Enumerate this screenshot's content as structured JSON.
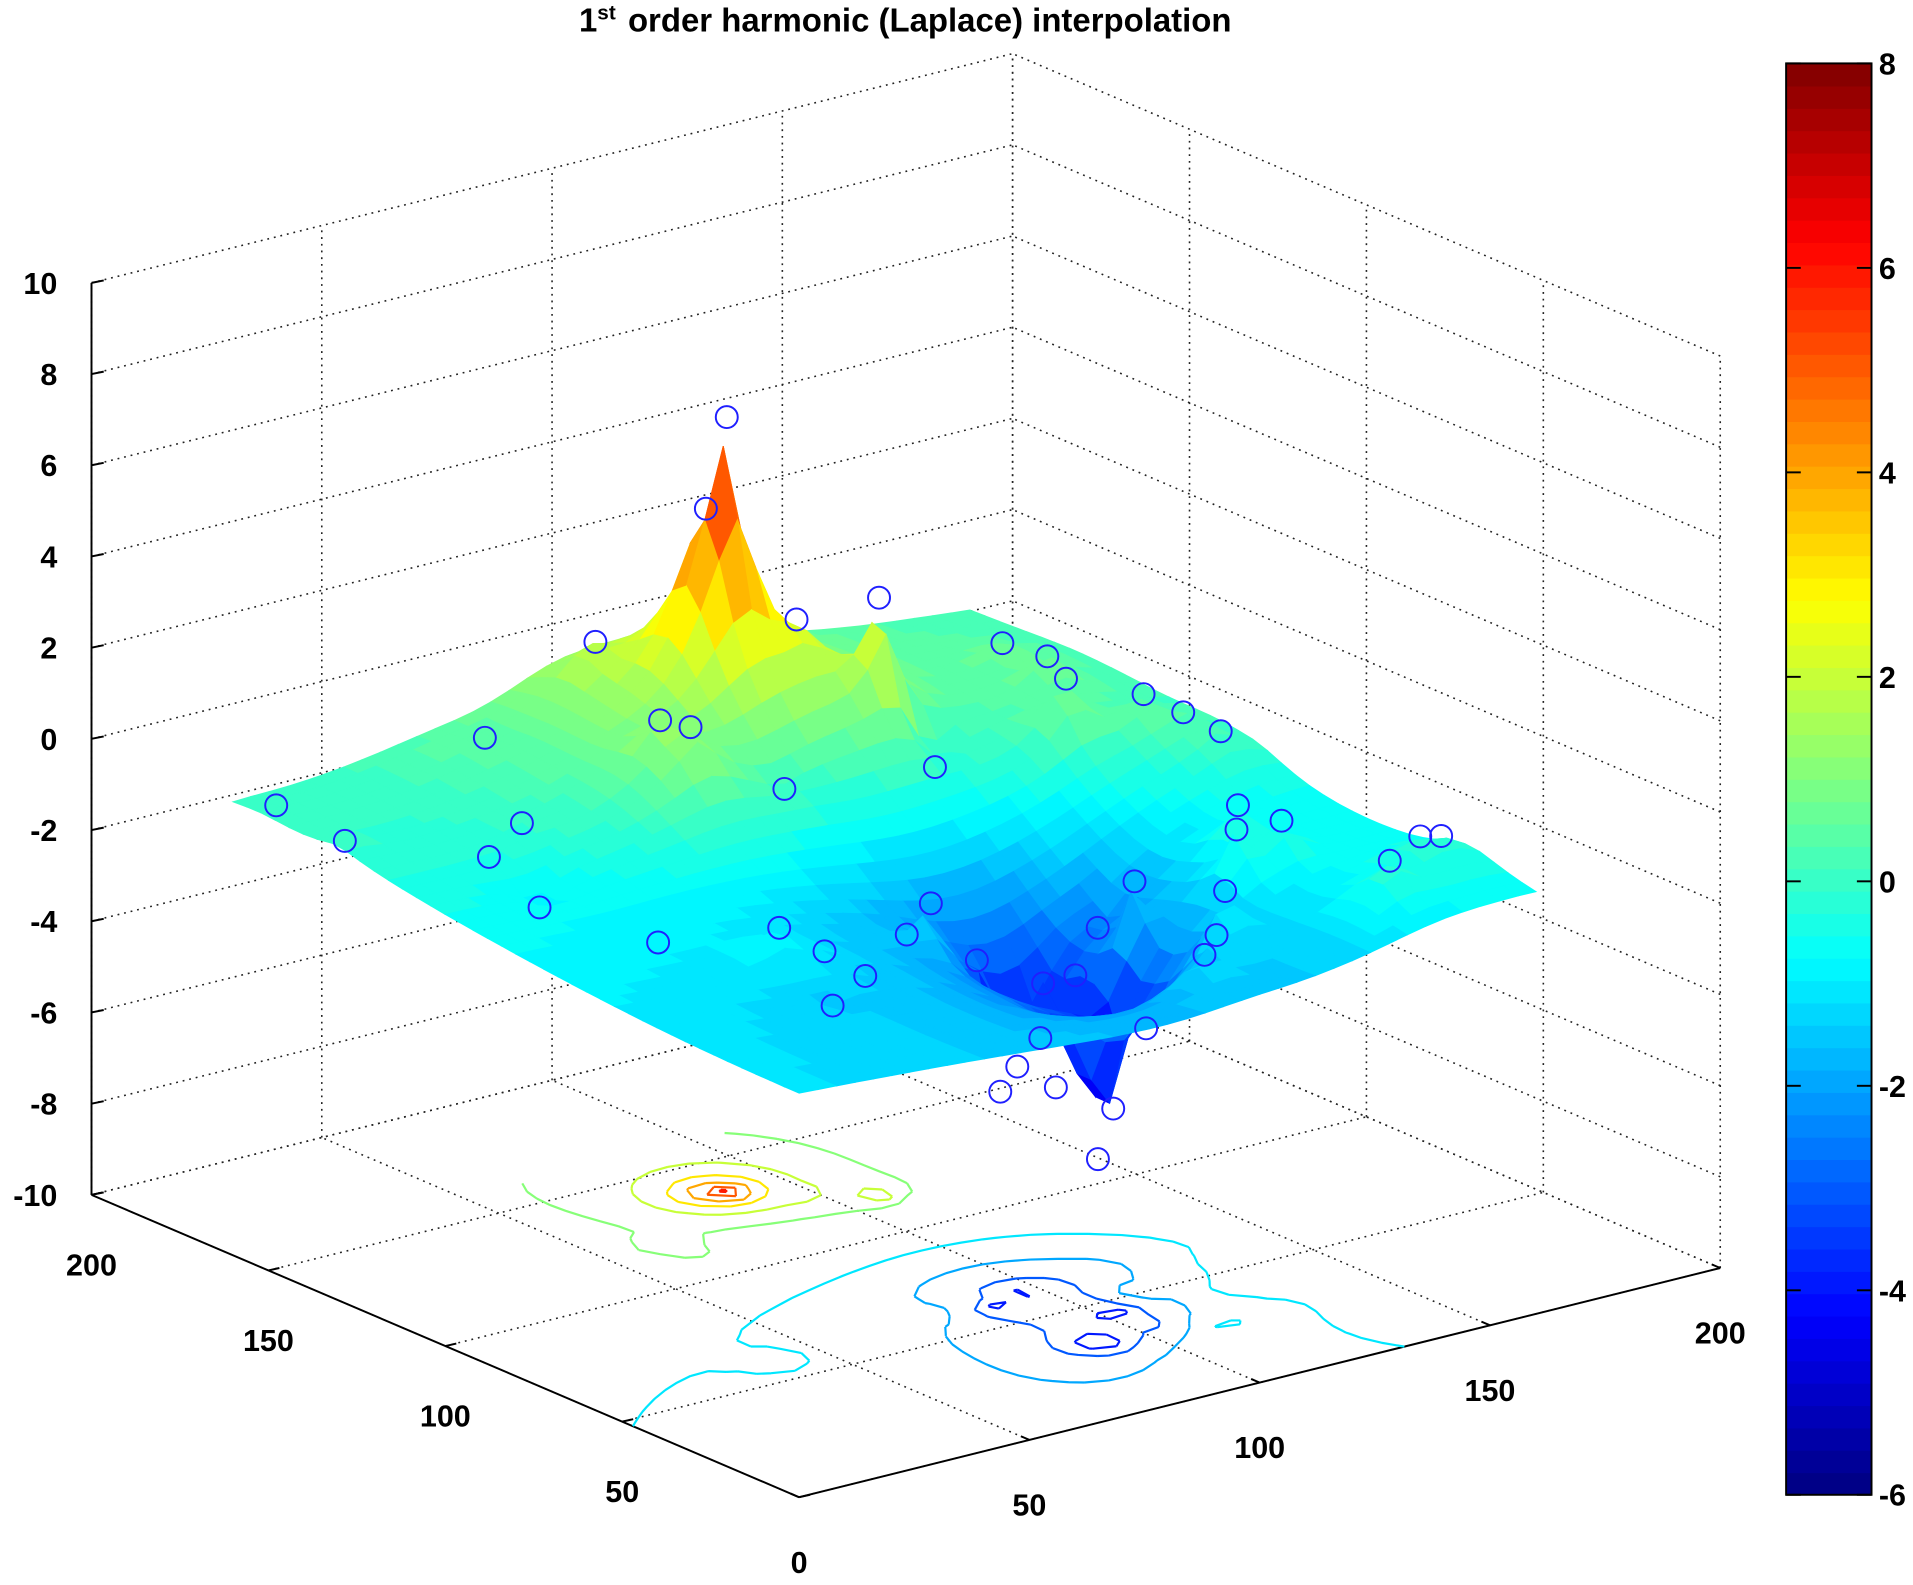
{
  "chart_data": {
    "type": "surface",
    "title": {
      "prefix": "1",
      "superscript": "st",
      "text": "order harmonic (Laplace) interpolation"
    },
    "xlabel": "",
    "ylabel": "",
    "zlabel": "",
    "xlim": [
      0,
      200
    ],
    "ylim": [
      0,
      200
    ],
    "zlim": [
      -10,
      10
    ],
    "xticks": [
      "0",
      "50",
      "100",
      "150",
      "200"
    ],
    "yticks": [
      "50",
      "100",
      "150",
      "200"
    ],
    "zticks": [
      "-10",
      "-8",
      "-6",
      "-4",
      "-2",
      "0",
      "2",
      "4",
      "6",
      "8",
      "10"
    ],
    "surface_domain": [
      0,
      160
    ],
    "grid": true,
    "colormap": "jet",
    "clim": [
      -6,
      8
    ],
    "colorbar": {
      "position": "right",
      "ticks": [
        "8",
        "6",
        "4",
        "2",
        "0",
        "-2",
        "-4",
        "-6"
      ]
    },
    "contour_plane_z": -10,
    "contour_levels": [
      -5,
      -4,
      -3,
      -2,
      -1,
      1,
      2,
      3,
      4,
      5,
      6
    ],
    "marker": {
      "shape": "circle",
      "color": "#1f1fff"
    },
    "points": [
      [
        88,
        135,
        7
      ],
      [
        85,
        137,
        5
      ],
      [
        108,
        118,
        3.1
      ],
      [
        97,
        127,
        2.6
      ],
      [
        71,
        150,
        2
      ],
      [
        62,
        120,
        1.5
      ],
      [
        64,
        114,
        1.5
      ],
      [
        144,
        130,
        0.8
      ],
      [
        143,
        116,
        1
      ],
      [
        134,
        99,
        1.3
      ],
      [
        114,
        110,
        -0.5
      ],
      [
        4,
        153,
        0
      ],
      [
        2,
        131,
        0
      ],
      [
        21,
        115,
        -0.3
      ],
      [
        22,
        102,
        -1
      ],
      [
        41,
        59,
        -0.5
      ],
      [
        77,
        63,
        -1
      ],
      [
        71,
        62,
        -1.5
      ],
      [
        87,
        63,
        -2.5
      ],
      [
        114,
        64,
        -2.5
      ],
      [
        112,
        51,
        -1
      ],
      [
        114,
        28,
        -0.5
      ],
      [
        136,
        53,
        0
      ],
      [
        128,
        43,
        0
      ],
      [
        137,
        42,
        0
      ],
      [
        139,
        14,
        0
      ],
      [
        151,
        21,
        0
      ],
      [
        103,
        56,
        -3
      ],
      [
        96,
        56,
        -3
      ],
      [
        100,
        62,
        -4.5
      ],
      [
        95,
        62,
        -5
      ],
      [
        89,
        59,
        -5.3
      ],
      [
        98,
        55,
        -5.3
      ],
      [
        102,
        44,
        -5.5
      ],
      [
        91,
        34,
        -6
      ],
      [
        103,
        36,
        -3.5
      ],
      [
        52,
        49,
        -1.5
      ],
      [
        47,
        54,
        -1
      ],
      [
        38,
        40,
        -1.5
      ],
      [
        27,
        75,
        -1
      ],
      [
        32,
        120,
        0
      ],
      [
        79,
        107,
        0
      ],
      [
        98,
        13,
        -1
      ],
      [
        106,
        20,
        -1
      ],
      [
        154,
        19,
        0
      ],
      [
        47,
        150,
        0.5
      ],
      [
        147,
        94,
        0.8
      ],
      [
        151,
        88,
        0.5
      ],
      [
        153,
        80,
        0.3
      ]
    ]
  }
}
